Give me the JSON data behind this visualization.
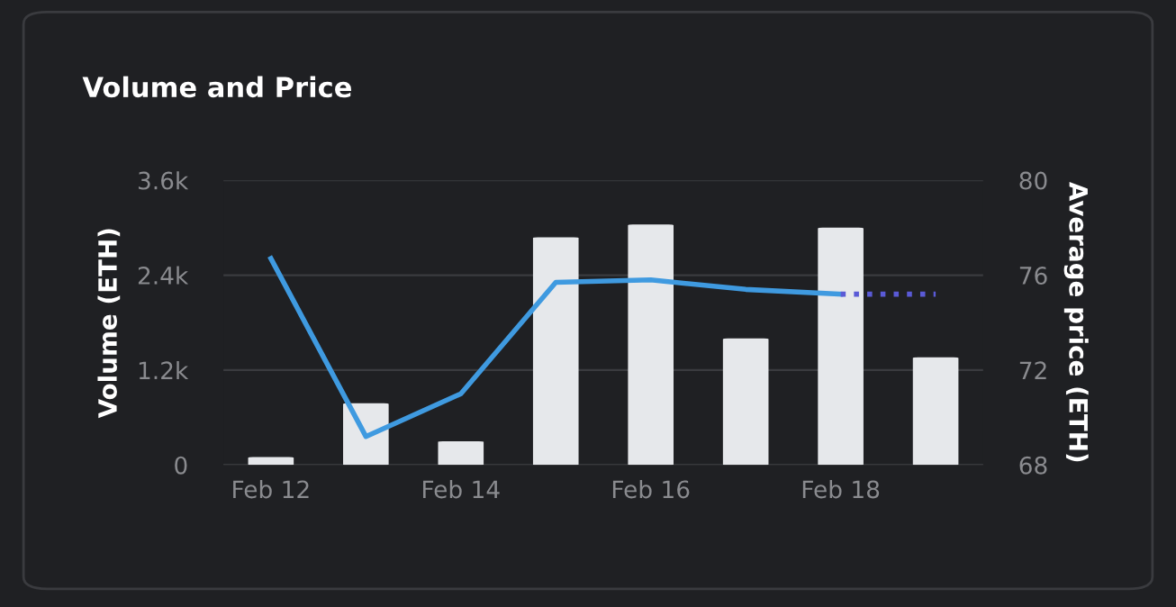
{
  "chart_data": {
    "type": "bar",
    "title": "Volume and Price",
    "ylabel": "Volume (ETH)",
    "y2label": "Average price (ETH)",
    "categories": [
      "Feb 12",
      null,
      "Feb 14",
      null,
      "Feb 16",
      null,
      "Feb 18",
      null
    ],
    "series": [
      {
        "color": "#e6e8eb",
        "values": [
          100,
          780,
          300,
          2880,
          3040,
          1600,
          3000,
          1360
        ]
      },
      {
        "type": "line",
        "axis": "y2",
        "color": "#3f9ae0",
        "line_style": "solid",
        "values": [
          76.7,
          69.2,
          71.0,
          75.7,
          75.8,
          75.4,
          75.2,
          null
        ]
      },
      {
        "type": "line",
        "axis": "y2",
        "color": "#5a5ad6",
        "line_style": "dotted",
        "values": [
          null,
          null,
          null,
          null,
          null,
          null,
          75.2,
          75.2
        ]
      }
    ],
    "ylim": [
      0,
      3600
    ],
    "yticks": [
      0,
      {
        "value": 1200,
        "label": "1.2k"
      },
      {
        "value": 2400,
        "label": "2.4k"
      },
      {
        "value": 3600,
        "label": "3.6k"
      }
    ],
    "y2lim": [
      68,
      80
    ],
    "y2ticks": [
      68,
      72,
      76,
      80
    ],
    "grid": "y",
    "legend": false,
    "marker": "none"
  }
}
